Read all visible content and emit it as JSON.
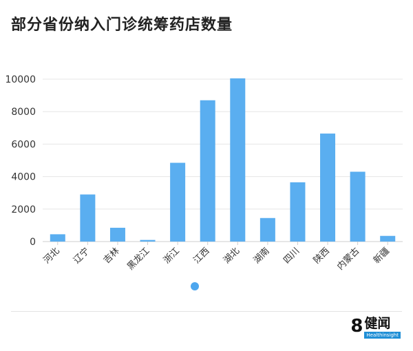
{
  "chart_data": {
    "type": "bar",
    "title": "部分省份纳入门诊统筹药店数量",
    "categories": [
      "河北",
      "辽宁",
      "吉林",
      "黑龙江",
      "浙江",
      "江西",
      "湖北",
      "湖南",
      "四川",
      "陕西",
      "内蒙古",
      "新疆"
    ],
    "series": [
      {
        "values": [
          450,
          2900,
          850,
          100,
          4850,
          8700,
          10050,
          1450,
          3650,
          6650,
          4300,
          350
        ]
      }
    ],
    "xlabel": "",
    "ylabel": "",
    "ylim": [
      0,
      10000
    ],
    "yticks": [
      0,
      2000,
      4000,
      6000,
      8000,
      10000
    ],
    "grid": true,
    "legend": "none",
    "bar_color": "#5aaef0",
    "gridline_color": "#e6e6e6",
    "axis_color": "#cccccc",
    "tick_label_color": "#333333"
  },
  "footer": {
    "indicator_color": "#4da6ee",
    "logo_digit": "8",
    "logo_name": "健闻",
    "logo_sub": "Healthinsight",
    "logo_accent": "#1f8fd6"
  }
}
